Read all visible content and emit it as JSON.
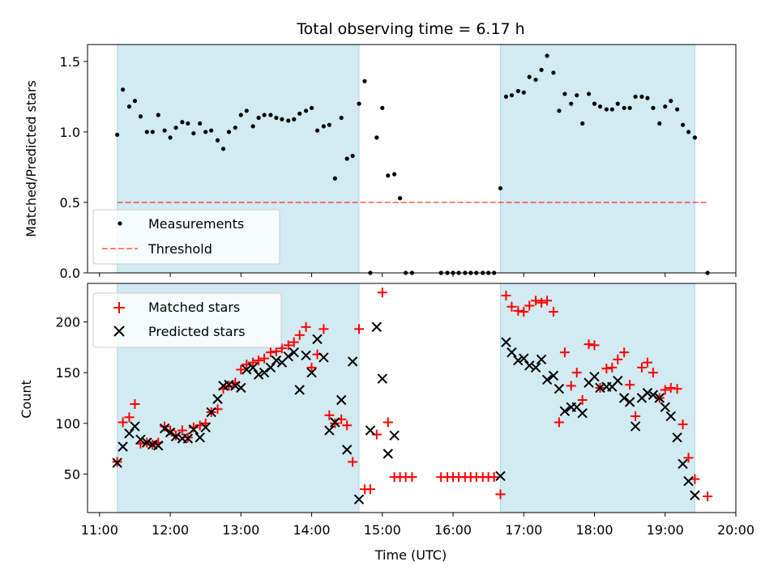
{
  "title": "Total observing time = 6.17 h",
  "colors": {
    "shade": "#add8e6",
    "measurement": "#000000",
    "threshold": "#ff0000",
    "matched": "#ff0000",
    "predicted": "#000000"
  },
  "chart_data": [
    {
      "type": "scatter",
      "panel": "top",
      "ylabel": "Matched/Predicted stars",
      "xlabel": "",
      "xlim": [
        10.83,
        20.0
      ],
      "ylim": [
        0,
        1.62
      ],
      "ytick_values": [
        0.0,
        0.5,
        1.0,
        1.5
      ],
      "ytick_labels": [
        "0.0",
        "0.5",
        "1.0",
        "1.5"
      ],
      "legend_placement": "lower-left",
      "shaded_intervals": [
        [
          11.25,
          14.67
        ],
        [
          16.67,
          19.42
        ]
      ],
      "threshold": {
        "name": "Threshold",
        "y": 0.5,
        "x_range": [
          11.25,
          19.6
        ]
      },
      "series": [
        {
          "name": "Measurements",
          "x": [
            11.25,
            11.33,
            11.42,
            11.5,
            11.58,
            11.67,
            11.75,
            11.83,
            11.92,
            12.0,
            12.08,
            12.17,
            12.25,
            12.33,
            12.42,
            12.5,
            12.58,
            12.67,
            12.75,
            12.83,
            12.92,
            13.0,
            13.08,
            13.17,
            13.25,
            13.33,
            13.42,
            13.5,
            13.58,
            13.67,
            13.75,
            13.83,
            13.92,
            14.0,
            14.08,
            14.17,
            14.25,
            14.33,
            14.42,
            14.5,
            14.58,
            14.67,
            14.75,
            14.83,
            14.92,
            15.0,
            15.08,
            15.17,
            15.25,
            15.33,
            15.42,
            15.83,
            15.92,
            16.0,
            16.08,
            16.17,
            16.25,
            16.33,
            16.42,
            16.5,
            16.58,
            16.67,
            16.75,
            16.83,
            16.92,
            17.0,
            17.08,
            17.17,
            17.25,
            17.33,
            17.42,
            17.5,
            17.58,
            17.67,
            17.75,
            17.83,
            17.92,
            18.0,
            18.08,
            18.17,
            18.25,
            18.33,
            18.42,
            18.5,
            18.58,
            18.67,
            18.75,
            18.83,
            18.92,
            19.0,
            19.08,
            19.17,
            19.25,
            19.33,
            19.42,
            19.6
          ],
          "y": [
            0.98,
            1.3,
            1.18,
            1.22,
            1.11,
            1.0,
            1.0,
            1.12,
            1.01,
            0.96,
            1.03,
            1.07,
            1.06,
            0.99,
            1.06,
            1.0,
            1.01,
            0.94,
            0.88,
            1.0,
            1.03,
            1.12,
            1.15,
            1.04,
            1.1,
            1.12,
            1.12,
            1.1,
            1.09,
            1.08,
            1.09,
            1.13,
            1.15,
            1.17,
            1.01,
            1.04,
            1.05,
            0.67,
            1.1,
            0.81,
            0.83,
            1.2,
            1.36,
            0.0,
            0.96,
            1.17,
            0.69,
            0.7,
            0.53,
            0.0,
            0.0,
            0.0,
            0.0,
            0.0,
            0.0,
            0.0,
            0.0,
            0.0,
            0.0,
            0.0,
            0.0,
            0.6,
            1.25,
            1.26,
            1.29,
            1.28,
            1.39,
            1.37,
            1.44,
            1.54,
            1.42,
            1.15,
            1.27,
            1.2,
            1.26,
            1.06,
            1.27,
            1.2,
            1.18,
            1.16,
            1.16,
            1.2,
            1.17,
            1.17,
            1.25,
            1.25,
            1.24,
            1.17,
            1.06,
            1.18,
            1.22,
            1.16,
            1.05,
            1.0,
            0.96,
            0.0
          ]
        }
      ]
    },
    {
      "type": "scatter",
      "panel": "bottom",
      "ylabel": "Count",
      "xlabel": "Time (UTC)",
      "xlim": [
        10.83,
        20.0
      ],
      "ylim": [
        12,
        238
      ],
      "ytick_values": [
        50,
        100,
        150,
        200
      ],
      "ytick_labels": [
        "50",
        "100",
        "150",
        "200"
      ],
      "xtick_values": [
        11,
        12,
        13,
        14,
        15,
        16,
        17,
        18,
        19,
        20
      ],
      "xtick_labels": [
        "11:00",
        "12:00",
        "13:00",
        "14:00",
        "15:00",
        "16:00",
        "17:00",
        "18:00",
        "19:00",
        "20:00"
      ],
      "legend_placement": "top-left",
      "shaded_intervals": [
        [
          11.25,
          14.67
        ],
        [
          16.67,
          19.42
        ]
      ],
      "series": [
        {
          "name": "Matched stars",
          "marker": "plus",
          "x": [
            11.25,
            11.33,
            11.42,
            11.5,
            11.58,
            11.67,
            11.75,
            11.83,
            11.92,
            12.0,
            12.08,
            12.17,
            12.25,
            12.33,
            12.42,
            12.5,
            12.58,
            12.67,
            12.75,
            12.83,
            12.92,
            13.0,
            13.08,
            13.17,
            13.25,
            13.33,
            13.42,
            13.5,
            13.58,
            13.67,
            13.75,
            13.83,
            13.92,
            14.0,
            14.08,
            14.17,
            14.25,
            14.33,
            14.42,
            14.5,
            14.58,
            14.67,
            14.75,
            14.83,
            14.92,
            15.0,
            15.08,
            15.17,
            15.25,
            15.33,
            15.42,
            15.83,
            15.92,
            16.0,
            16.08,
            16.17,
            16.25,
            16.33,
            16.42,
            16.5,
            16.58,
            16.67,
            16.75,
            16.83,
            16.92,
            17.0,
            17.08,
            17.17,
            17.25,
            17.33,
            17.42,
            17.5,
            17.58,
            17.67,
            17.75,
            17.83,
            17.92,
            18.0,
            18.08,
            18.17,
            18.25,
            18.33,
            18.42,
            18.5,
            18.58,
            18.67,
            18.75,
            18.83,
            18.92,
            19.0,
            19.08,
            19.17,
            19.25,
            19.33,
            19.42,
            19.6
          ],
          "y": [
            62,
            101,
            106,
            119,
            80,
            81,
            79,
            81,
            97,
            93,
            88,
            93,
            86,
            96,
            98,
            100,
            111,
            114,
            134,
            137,
            140,
            153,
            158,
            160,
            162,
            164,
            170,
            171,
            174,
            177,
            180,
            187,
            195,
            155,
            168,
            193,
            108,
            100,
            104,
            98,
            62,
            193,
            35,
            35,
            89,
            229,
            101,
            47,
            47,
            47,
            47,
            47,
            47,
            47,
            47,
            47,
            47,
            47,
            47,
            47,
            47,
            30,
            226,
            215,
            211,
            210,
            216,
            221,
            219,
            221,
            210,
            101,
            170,
            137,
            150,
            123,
            178,
            177,
            135,
            154,
            155,
            163,
            170,
            138,
            107,
            155,
            160,
            150,
            125,
            133,
            135,
            134,
            99,
            66,
            45,
            28
          ]
        },
        {
          "name": "Predicted stars",
          "marker": "x",
          "x": [
            11.25,
            11.33,
            11.42,
            11.5,
            11.58,
            11.67,
            11.75,
            11.83,
            11.92,
            12.0,
            12.08,
            12.17,
            12.25,
            12.33,
            12.42,
            12.5,
            12.58,
            12.67,
            12.75,
            12.83,
            12.92,
            13.0,
            13.08,
            13.17,
            13.25,
            13.33,
            13.42,
            13.5,
            13.58,
            13.67,
            13.75,
            13.83,
            13.92,
            14.0,
            14.08,
            14.17,
            14.25,
            14.33,
            14.42,
            14.5,
            14.58,
            14.67,
            14.83,
            14.92,
            15.0,
            15.08,
            15.17,
            16.67,
            16.75,
            16.83,
            16.92,
            17.0,
            17.08,
            17.17,
            17.25,
            17.33,
            17.42,
            17.5,
            17.58,
            17.67,
            17.75,
            17.83,
            17.92,
            18.0,
            18.08,
            18.17,
            18.25,
            18.33,
            18.42,
            18.5,
            18.58,
            18.67,
            18.75,
            18.83,
            18.92,
            19.0,
            19.08,
            19.17,
            19.25,
            19.33,
            19.42
          ],
          "y": [
            61,
            77,
            90,
            97,
            84,
            81,
            79,
            78,
            95,
            91,
            87,
            85,
            85,
            94,
            86,
            96,
            111,
            124,
            137,
            138,
            137,
            135,
            153,
            155,
            148,
            150,
            155,
            162,
            160,
            166,
            170,
            133,
            167,
            150,
            183,
            165,
            93,
            101,
            123,
            74,
            161,
            25,
            93,
            195,
            144,
            70,
            88,
            48,
            180,
            170,
            162,
            164,
            157,
            155,
            163,
            143,
            147,
            134,
            112,
            116,
            116,
            110,
            140,
            146,
            135,
            136,
            136,
            142,
            125,
            121,
            97,
            125,
            130,
            128,
            125,
            116,
            107,
            86,
            60,
            43,
            29
          ]
        }
      ]
    }
  ]
}
